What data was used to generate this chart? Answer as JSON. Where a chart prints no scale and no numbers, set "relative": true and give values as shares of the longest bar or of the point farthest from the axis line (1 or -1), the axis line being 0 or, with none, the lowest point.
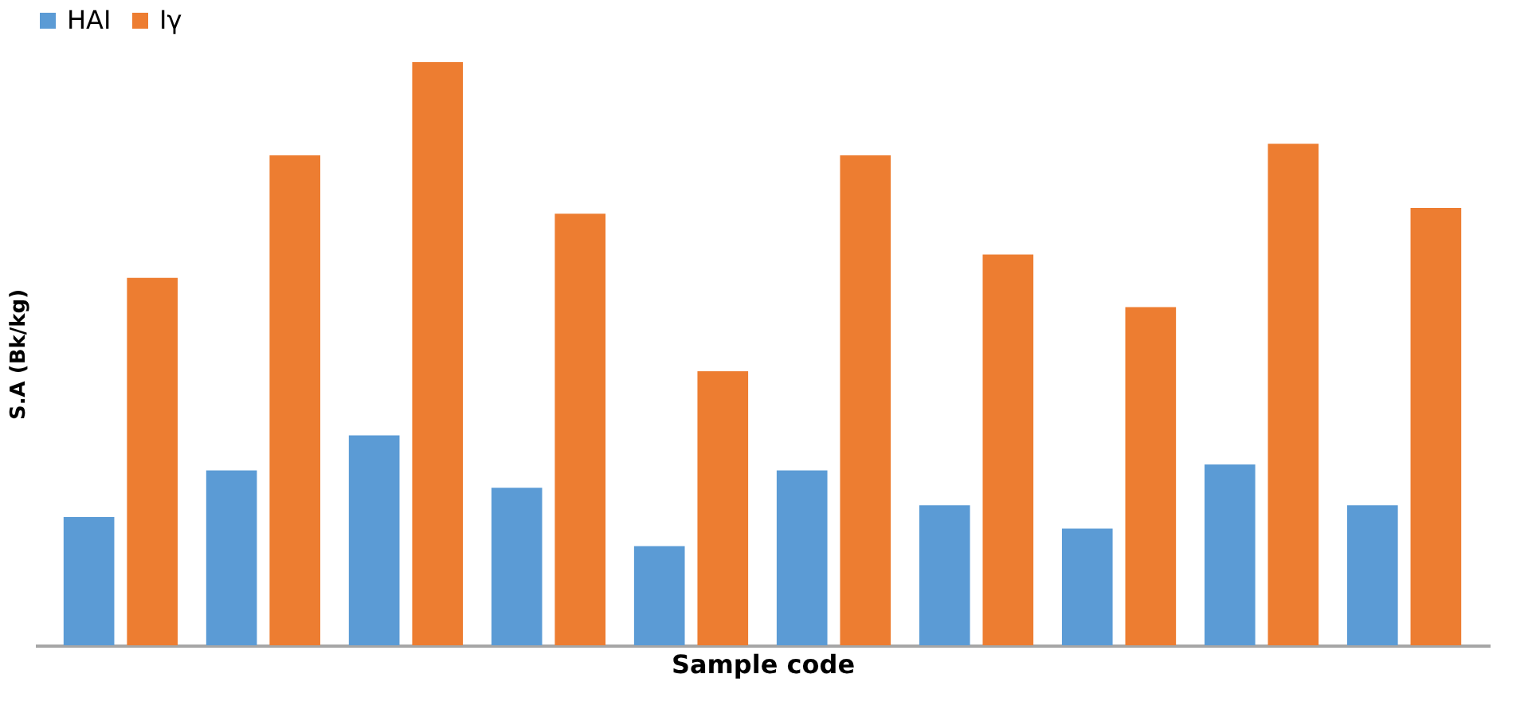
{
  "chart_data": {
    "type": "bar",
    "relative": true,
    "xlabel": "Sample code",
    "ylabel": "S.A (Bk/kg)",
    "legend": "top",
    "tick_labels": false,
    "grid": false,
    "categories": [
      null,
      null,
      null,
      null,
      null,
      null,
      null,
      null,
      null,
      null
    ],
    "series": [
      {
        "name": "HAI",
        "color": "#5b9bd5",
        "values": [
          0.22,
          0.3,
          0.36,
          0.27,
          0.17,
          0.3,
          0.24,
          0.2,
          0.31,
          0.24
        ]
      },
      {
        "name": "Iγ",
        "color": "#ed7d31",
        "values": [
          0.63,
          0.84,
          1,
          0.74,
          0.47,
          0.84,
          0.67,
          0.58,
          0.86,
          0.75
        ]
      }
    ]
  }
}
